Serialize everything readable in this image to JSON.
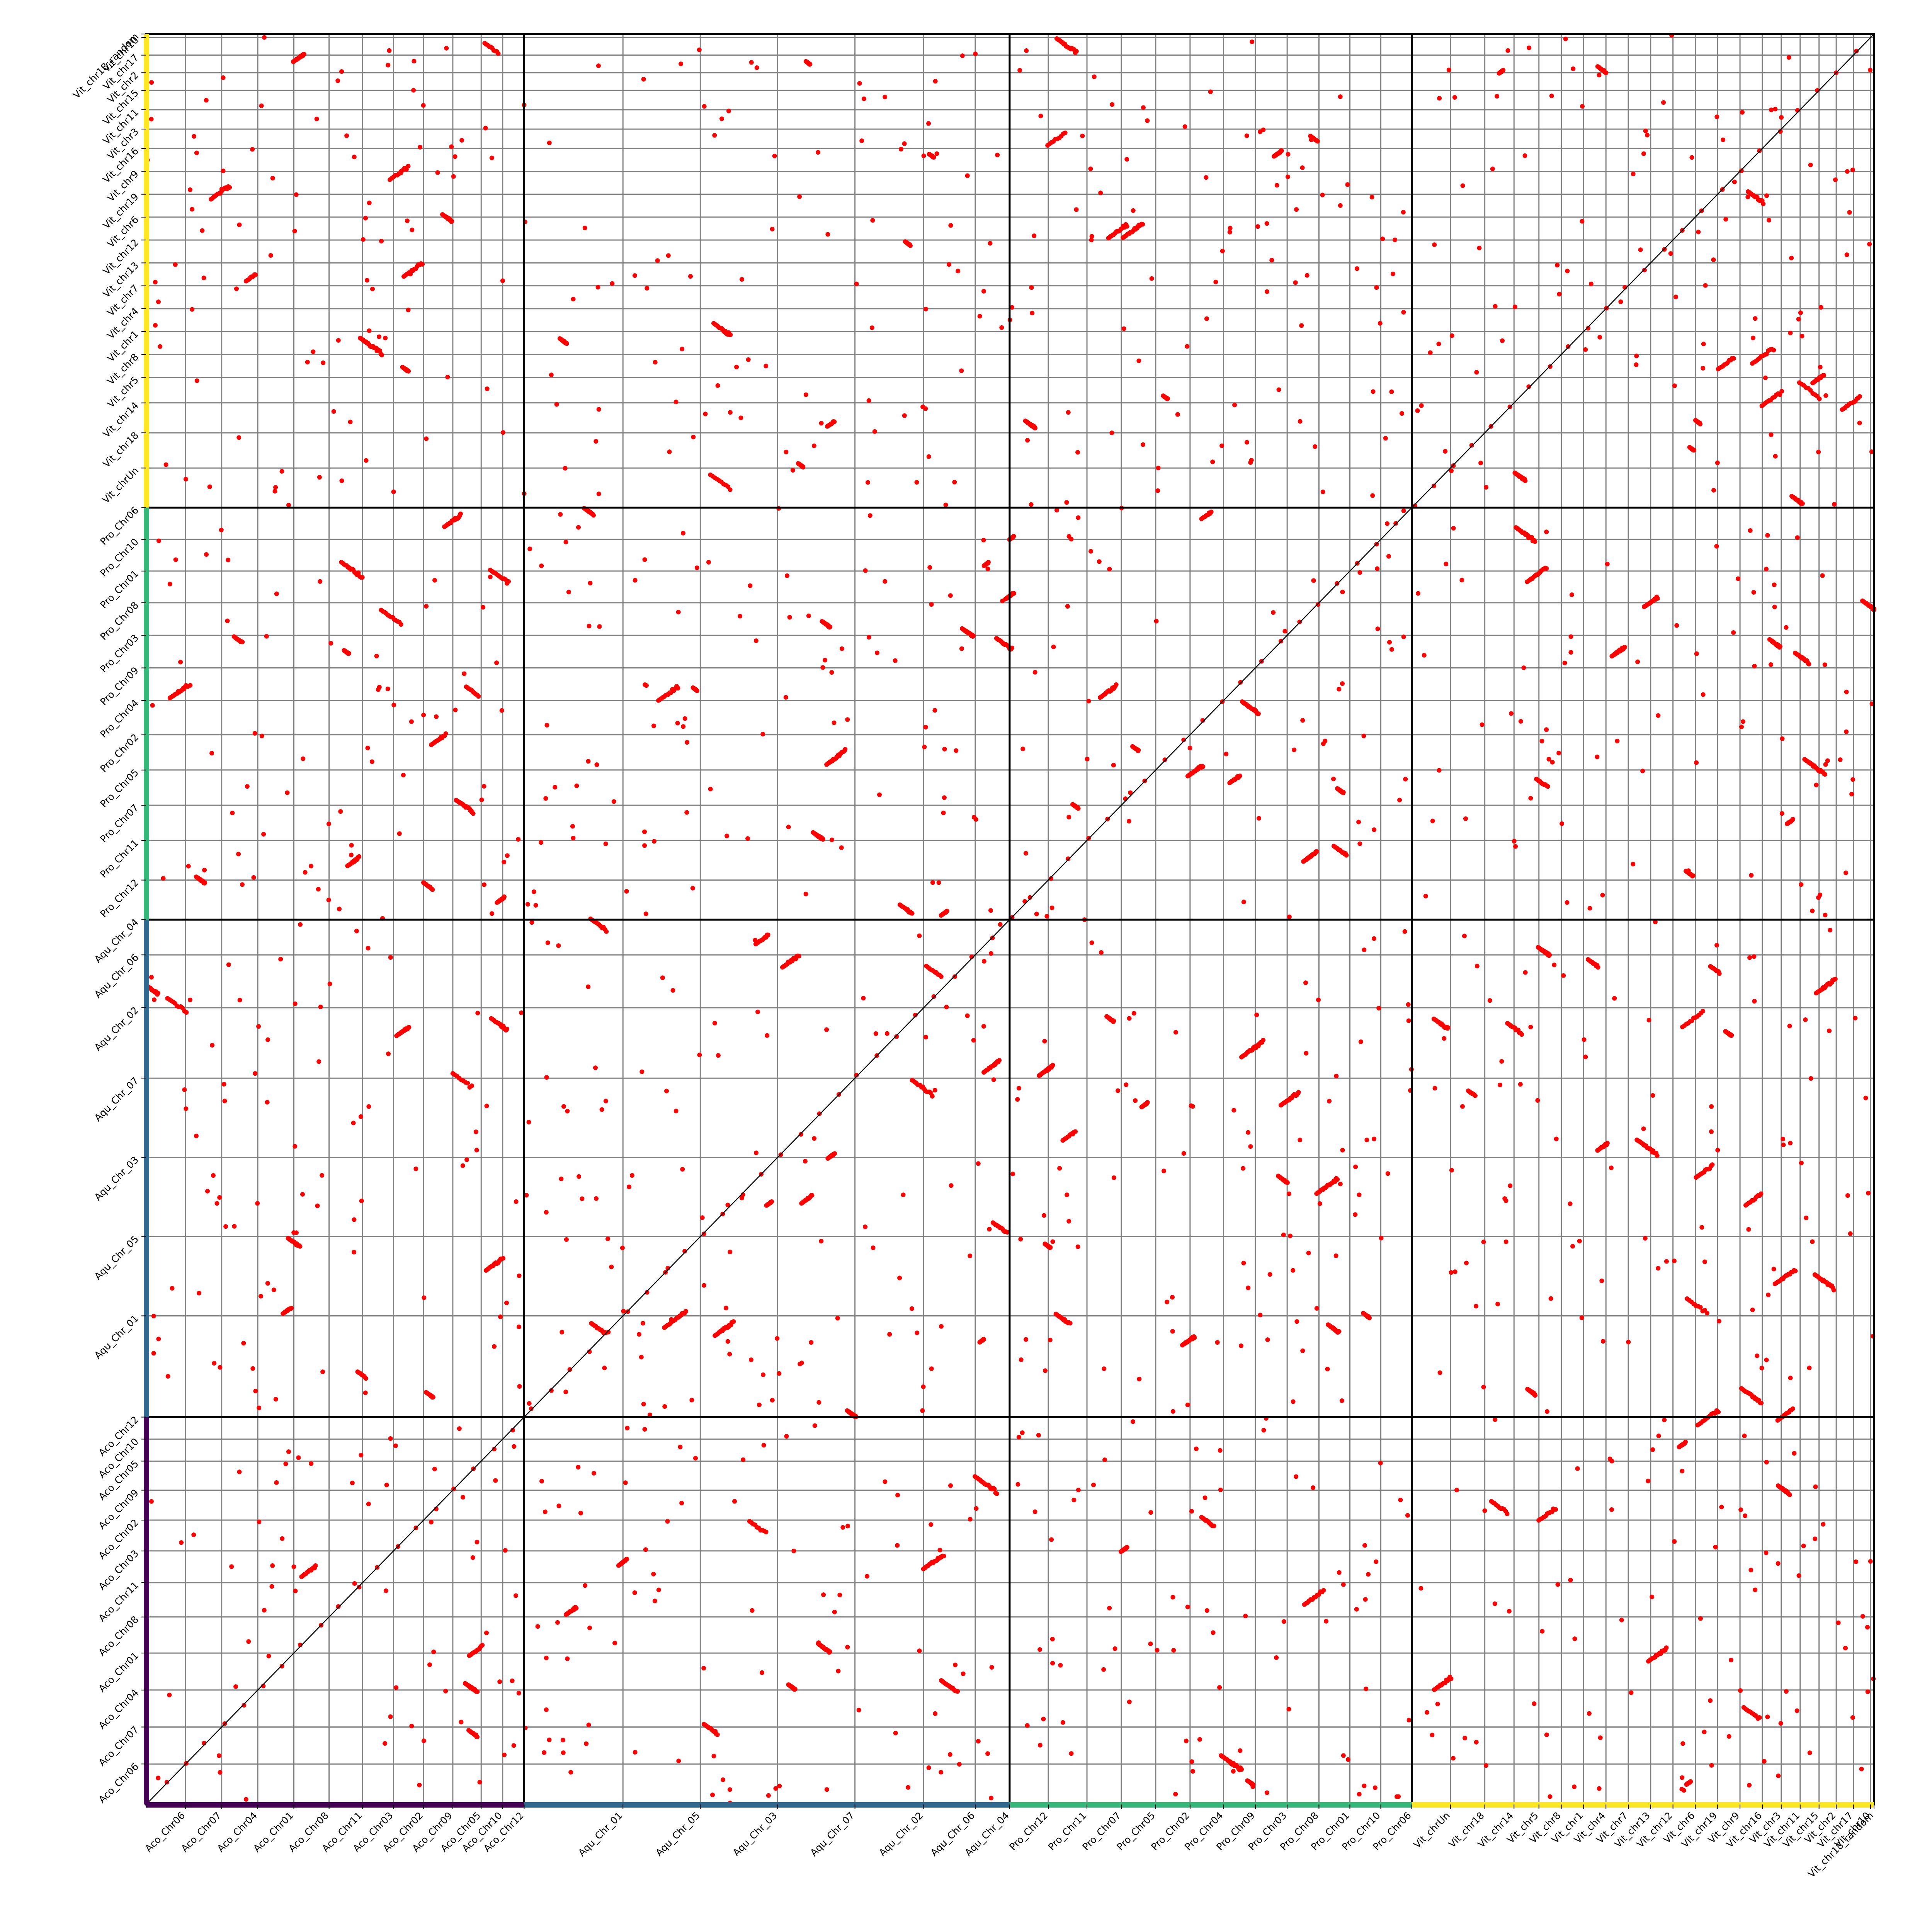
{
  "chart_data": {
    "type": "scatter",
    "title": "",
    "xlabel": "",
    "ylabel": "",
    "grid": true,
    "diagonal_line": true,
    "point_color": "#ff0000",
    "grid_color": "#808080",
    "boundary_color": "#000000",
    "genomes": [
      {
        "name": "Aco",
        "color": "#440154",
        "chromosomes": [
          {
            "name": "Aco_Chr06",
            "size": 4.6
          },
          {
            "name": "Aco_Chr07",
            "size": 4.2
          },
          {
            "name": "Aco_Chr04",
            "size": 4.2
          },
          {
            "name": "Aco_Chr01",
            "size": 4.2
          },
          {
            "name": "Aco_Chr08",
            "size": 4.1
          },
          {
            "name": "Aco_Chr11",
            "size": 3.9
          },
          {
            "name": "Aco_Chr03",
            "size": 3.6
          },
          {
            "name": "Aco_Chr02",
            "size": 3.5
          },
          {
            "name": "Aco_Chr09",
            "size": 3.4
          },
          {
            "name": "Aco_Chr05",
            "size": 3.3
          },
          {
            "name": "Aco_Chr10",
            "size": 2.5
          },
          {
            "name": "Aco_Chr12",
            "size": 2.5
          }
        ]
      },
      {
        "name": "Aqu",
        "color": "#31688e",
        "chromosomes": [
          {
            "name": "Aqu_Chr_01",
            "size": 11.5
          },
          {
            "name": "Aqu_Chr_05",
            "size": 9.0
          },
          {
            "name": "Aqu_Chr_03",
            "size": 9.0
          },
          {
            "name": "Aqu_Chr_07",
            "size": 9.0
          },
          {
            "name": "Aqu_Chr_02",
            "size": 8.0
          },
          {
            "name": "Aqu_Chr_06",
            "size": 6.0
          },
          {
            "name": "Aqu_Chr_04",
            "size": 4.0
          }
        ]
      },
      {
        "name": "Pro",
        "color": "#35b779",
        "chromosomes": [
          {
            "name": "Pro_Chr12",
            "size": 4.5
          },
          {
            "name": "Pro_Chr11",
            "size": 4.5
          },
          {
            "name": "Pro_Chr07",
            "size": 4.0
          },
          {
            "name": "Pro_Chr05",
            "size": 4.0
          },
          {
            "name": "Pro_Chr02",
            "size": 4.0
          },
          {
            "name": "Pro_Chr04",
            "size": 3.9
          },
          {
            "name": "Pro_Chr09",
            "size": 3.7
          },
          {
            "name": "Pro_Chr03",
            "size": 3.7
          },
          {
            "name": "Pro_Chr08",
            "size": 3.7
          },
          {
            "name": "Pro_Chr01",
            "size": 3.6
          },
          {
            "name": "Pro_Chr10",
            "size": 3.6
          },
          {
            "name": "Pro_Chr06",
            "size": 3.6
          }
        ]
      },
      {
        "name": "Vit",
        "color": "#fde725",
        "chromosomes": [
          {
            "name": "Vit_chrUn",
            "size": 4.5
          },
          {
            "name": "Vit_chr18",
            "size": 4.0
          },
          {
            "name": "Vit_chr14",
            "size": 3.4
          },
          {
            "name": "Vit_chr5",
            "size": 2.9
          },
          {
            "name": "Vit_chr8",
            "size": 2.6
          },
          {
            "name": "Vit_chr1",
            "size": 2.6
          },
          {
            "name": "Vit_chr4",
            "size": 2.6
          },
          {
            "name": "Vit_chr7",
            "size": 2.6
          },
          {
            "name": "Vit_chr13",
            "size": 2.6
          },
          {
            "name": "Vit_chr12",
            "size": 2.6
          },
          {
            "name": "Vit_chr6",
            "size": 2.6
          },
          {
            "name": "Vit_chr19",
            "size": 2.6
          },
          {
            "name": "Vit_chr9",
            "size": 2.6
          },
          {
            "name": "Vit_chr16",
            "size": 2.6
          },
          {
            "name": "Vit_chr3",
            "size": 2.2
          },
          {
            "name": "Vit_chr11",
            "size": 2.2
          },
          {
            "name": "Vit_chr15",
            "size": 2.2
          },
          {
            "name": "Vit_chr2",
            "size": 2.0
          },
          {
            "name": "Vit_chr17",
            "size": 2.0
          },
          {
            "name": "Vit_chr10",
            "size": 2.0
          },
          {
            "name": "Vit_chr18_random",
            "size": 0.4
          }
        ]
      }
    ]
  }
}
